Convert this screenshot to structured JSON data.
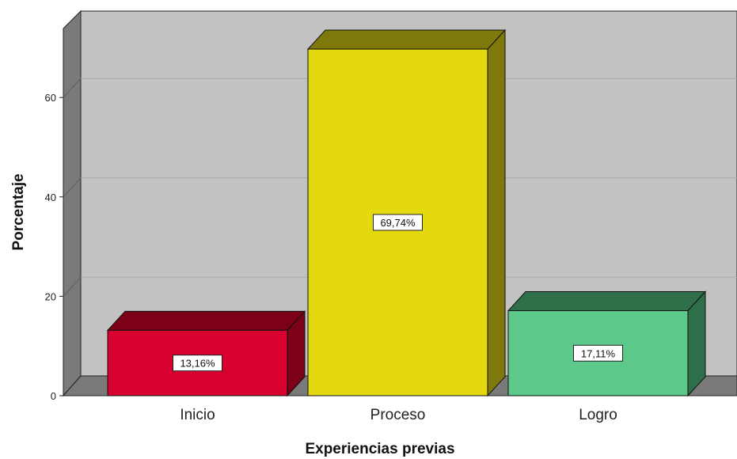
{
  "chart_data": {
    "type": "bar",
    "style": "3d",
    "title": "",
    "xlabel": "Experiencias previas",
    "ylabel": "Porcentaje",
    "ylim": [
      0,
      72
    ],
    "yticks": [
      0,
      20,
      40,
      60
    ],
    "grid": true,
    "categories": [
      "Inicio",
      "Proceso",
      "Logro"
    ],
    "values": [
      13.16,
      69.74,
      17.11
    ],
    "value_labels": [
      "13,16%",
      "69,74%",
      "17,11%"
    ],
    "colors": [
      "#d8002e",
      "#e4d80e",
      "#5cc98b"
    ],
    "side_colors": [
      "#7c0016",
      "#7f780a",
      "#2e6e48"
    ],
    "background": "#c2c2c2",
    "floor_color": "#7a7a7a"
  }
}
